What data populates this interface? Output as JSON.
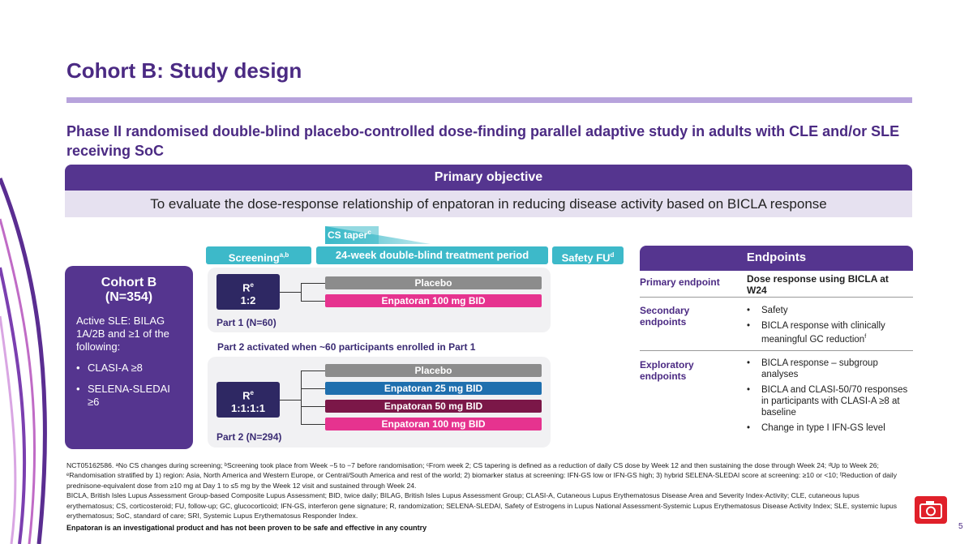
{
  "title": "Cohort B: Study design",
  "subtitle": "Phase II randomised double-blind placebo-controlled dose-finding parallel adaptive study in adults with CLE and/or SLE receiving SoC",
  "primary_objective": {
    "heading": "Primary objective",
    "text": "To evaluate the dose-response relationship of enpatoran in reducing disease activity based on BICLA response"
  },
  "timeline": {
    "cs_taper": "CS taper",
    "cs_taper_sup": "c",
    "screening": "Screening",
    "screening_sup": "a,b",
    "treatment": "24-week double-blind treatment period",
    "safety": "Safety FU",
    "safety_sup": "d"
  },
  "cohort": {
    "title": "Cohort B",
    "n": "(N=354)",
    "criteria": "Active SLE: BILAG 1A/2B and ≥1 of the following:",
    "bullets": [
      "CLASI-A ≥8",
      "SELENA-SLEDAI ≥6"
    ],
    "bullet_char": "•"
  },
  "part1": {
    "r_label": "R",
    "r_sup": "e",
    "ratio": "1:2",
    "arms": [
      "Placebo",
      "Enpatoran 100 mg BID"
    ],
    "label": "Part 1 (N=60)"
  },
  "part2_activation": "Part 2 activated when ~60 participants enrolled in Part 1",
  "part2": {
    "r_label": "R",
    "r_sup": "e",
    "ratio": "1:1:1:1",
    "arms": [
      "Placebo",
      "Enpatoran 25 mg BID",
      "Enpatoran 50 mg BID",
      "Enpatoran 100 mg BID"
    ],
    "label": "Part 2 (N=294)"
  },
  "arm_colors": {
    "placebo": "#8c8c8c",
    "dose25": "#1f6fae",
    "dose50": "#7b1748",
    "dose100": "#e6338f"
  },
  "endpoints": {
    "heading": "Endpoints",
    "primary_label": "Primary endpoint",
    "primary_text": "Dose response using BICLA at W24",
    "secondary_label": "Secondary endpoints",
    "secondary": [
      "Safety",
      "BICLA response with clinically meaningful GC reduction"
    ],
    "secondary_sup": "f",
    "exploratory_label": "Exploratory endpoints",
    "exploratory": [
      "BICLA response – subgroup analyses",
      "BICLA and CLASI-50/70 responses in participants with CLASI-A ≥8 at baseline",
      "Change in type I IFN-GS level"
    ],
    "bullet_char": "•"
  },
  "footnotes": {
    "line1": "NCT05162586. ᵃNo CS changes during screening; ᵇScreening took place from Week −5 to −7 before randomisation; ᶜFrom week 2; CS tapering is defined as a reduction of daily CS dose by Week 12 and then sustaining the dose through Week 24; ᵈUp to Week 26; ᵉRandomisation stratified by 1) region: Asia, North America and Western Europe, or Central/South America and rest of the world; 2) biomarker status at screening: IFN-GS low or IFN-GS high; 3) hybrid SELENA-SLEDAI score at screening: ≥10 or <10; ᶠReduction of daily prednisone-equivalent dose from ≥10 mg at Day 1 to ≤5 mg by the Week 12 visit and sustained through Week 24.",
    "abbreviations": "BICLA, British Isles Lupus Assessment Group-based Composite Lupus Assessment; BID, twice daily; BILAG, British Isles Lupus Assessment Group; CLASI-A, Cutaneous Lupus Erythematosus Disease Area and Severity Index-Activity; CLE, cutaneous lupus erythematosus; CS, corticosteroid; FU, follow-up; GC, glucocorticoid; IFN-GS, interferon gene signature; R, randomization; SELENA-SLEDAI, Safety of Estrogens in Lupus National Assessment-Systemic Lupus Erythematosus Disease Activity Index; SLE, systemic lupus erythematosus; SoC, standard of care; SRI, Systemic Lupus Erythematosus Responder Index.",
    "disclaimer": "Enpatoran is an investigational product and has not been proven to be safe and effective in any country"
  },
  "page_number": "5"
}
